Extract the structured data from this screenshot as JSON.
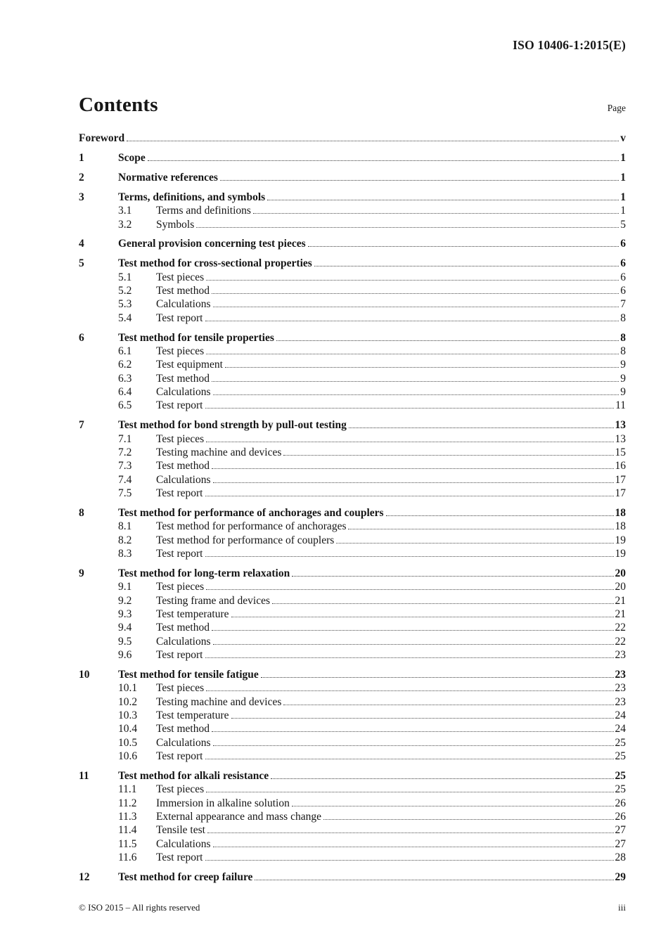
{
  "header": {
    "doc_ref": "ISO 10406-1:2015(E)"
  },
  "toc": {
    "title": "Contents",
    "page_column_label": "Page",
    "entries": [
      {
        "num": "",
        "label": "Foreword",
        "page": "v",
        "level": 0
      },
      {
        "num": "1",
        "label": "Scope",
        "page": "1",
        "level": 0
      },
      {
        "num": "2",
        "label": "Normative references",
        "page": "1",
        "level": 0
      },
      {
        "num": "3",
        "label": "Terms, definitions, and symbols",
        "page": "1",
        "level": 0
      },
      {
        "num": "3.1",
        "label": "Terms and definitions",
        "page": "1",
        "level": 1
      },
      {
        "num": "3.2",
        "label": "Symbols",
        "page": "5",
        "level": 1
      },
      {
        "num": "4",
        "label": "General provision concerning test pieces",
        "page": "6",
        "level": 0
      },
      {
        "num": "5",
        "label": "Test method for cross-sectional properties",
        "page": "6",
        "level": 0
      },
      {
        "num": "5.1",
        "label": "Test pieces",
        "page": "6",
        "level": 1
      },
      {
        "num": "5.2",
        "label": "Test method",
        "page": "6",
        "level": 1
      },
      {
        "num": "5.3",
        "label": "Calculations",
        "page": "7",
        "level": 1
      },
      {
        "num": "5.4",
        "label": "Test report",
        "page": "8",
        "level": 1
      },
      {
        "num": "6",
        "label": "Test method for tensile properties",
        "page": "8",
        "level": 0
      },
      {
        "num": "6.1",
        "label": "Test pieces",
        "page": "8",
        "level": 1
      },
      {
        "num": "6.2",
        "label": "Test equipment",
        "page": "9",
        "level": 1
      },
      {
        "num": "6.3",
        "label": "Test method",
        "page": "9",
        "level": 1
      },
      {
        "num": "6.4",
        "label": "Calculations",
        "page": "9",
        "level": 1
      },
      {
        "num": "6.5",
        "label": "Test report",
        "page": "11",
        "level": 1
      },
      {
        "num": "7",
        "label": "Test method for bond strength by pull-out testing",
        "page": "13",
        "level": 0
      },
      {
        "num": "7.1",
        "label": "Test pieces",
        "page": "13",
        "level": 1
      },
      {
        "num": "7.2",
        "label": "Testing machine and devices",
        "page": "15",
        "level": 1
      },
      {
        "num": "7.3",
        "label": "Test method",
        "page": "16",
        "level": 1
      },
      {
        "num": "7.4",
        "label": "Calculations",
        "page": "17",
        "level": 1
      },
      {
        "num": "7.5",
        "label": "Test report",
        "page": "17",
        "level": 1
      },
      {
        "num": "8",
        "label": "Test method for performance of anchorages and couplers",
        "page": "18",
        "level": 0
      },
      {
        "num": "8.1",
        "label": "Test method for performance of anchorages",
        "page": "18",
        "level": 1
      },
      {
        "num": "8.2",
        "label": "Test method for performance of couplers",
        "page": "19",
        "level": 1
      },
      {
        "num": "8.3",
        "label": "Test report",
        "page": "19",
        "level": 1
      },
      {
        "num": "9",
        "label": "Test method for long-term relaxation",
        "page": "20",
        "level": 0
      },
      {
        "num": "9.1",
        "label": "Test pieces",
        "page": "20",
        "level": 1
      },
      {
        "num": "9.2",
        "label": "Testing frame and devices",
        "page": "21",
        "level": 1
      },
      {
        "num": "9.3",
        "label": "Test temperature",
        "page": "21",
        "level": 1
      },
      {
        "num": "9.4",
        "label": "Test method",
        "page": "22",
        "level": 1
      },
      {
        "num": "9.5",
        "label": "Calculations",
        "page": "22",
        "level": 1
      },
      {
        "num": "9.6",
        "label": "Test report",
        "page": "23",
        "level": 1
      },
      {
        "num": "10",
        "label": "Test method for tensile fatigue",
        "page": "23",
        "level": 0
      },
      {
        "num": "10.1",
        "label": "Test pieces",
        "page": "23",
        "level": 1
      },
      {
        "num": "10.2",
        "label": "Testing machine and devices",
        "page": "23",
        "level": 1
      },
      {
        "num": "10.3",
        "label": "Test temperature",
        "page": "24",
        "level": 1
      },
      {
        "num": "10.4",
        "label": "Test method",
        "page": "24",
        "level": 1
      },
      {
        "num": "10.5",
        "label": "Calculations",
        "page": "25",
        "level": 1
      },
      {
        "num": "10.6",
        "label": "Test report",
        "page": "25",
        "level": 1
      },
      {
        "num": "11",
        "label": "Test method for alkali resistance",
        "page": "25",
        "level": 0
      },
      {
        "num": "11.1",
        "label": "Test pieces",
        "page": "25",
        "level": 1
      },
      {
        "num": "11.2",
        "label": "Immersion in alkaline solution",
        "page": "26",
        "level": 1
      },
      {
        "num": "11.3",
        "label": "External appearance and mass change",
        "page": "26",
        "level": 1
      },
      {
        "num": "11.4",
        "label": "Tensile test",
        "page": "27",
        "level": 1
      },
      {
        "num": "11.5",
        "label": "Calculations",
        "page": "27",
        "level": 1
      },
      {
        "num": "11.6",
        "label": "Test report",
        "page": "28",
        "level": 1
      },
      {
        "num": "12",
        "label": "Test method for creep failure",
        "page": "29",
        "level": 0
      }
    ]
  },
  "footer": {
    "copyright": "© ISO 2015 – All rights reserved",
    "page_number": "iii"
  },
  "colors": {
    "text": "#161616",
    "background": "#ffffff",
    "leader_dots": "#4a4a4a"
  }
}
